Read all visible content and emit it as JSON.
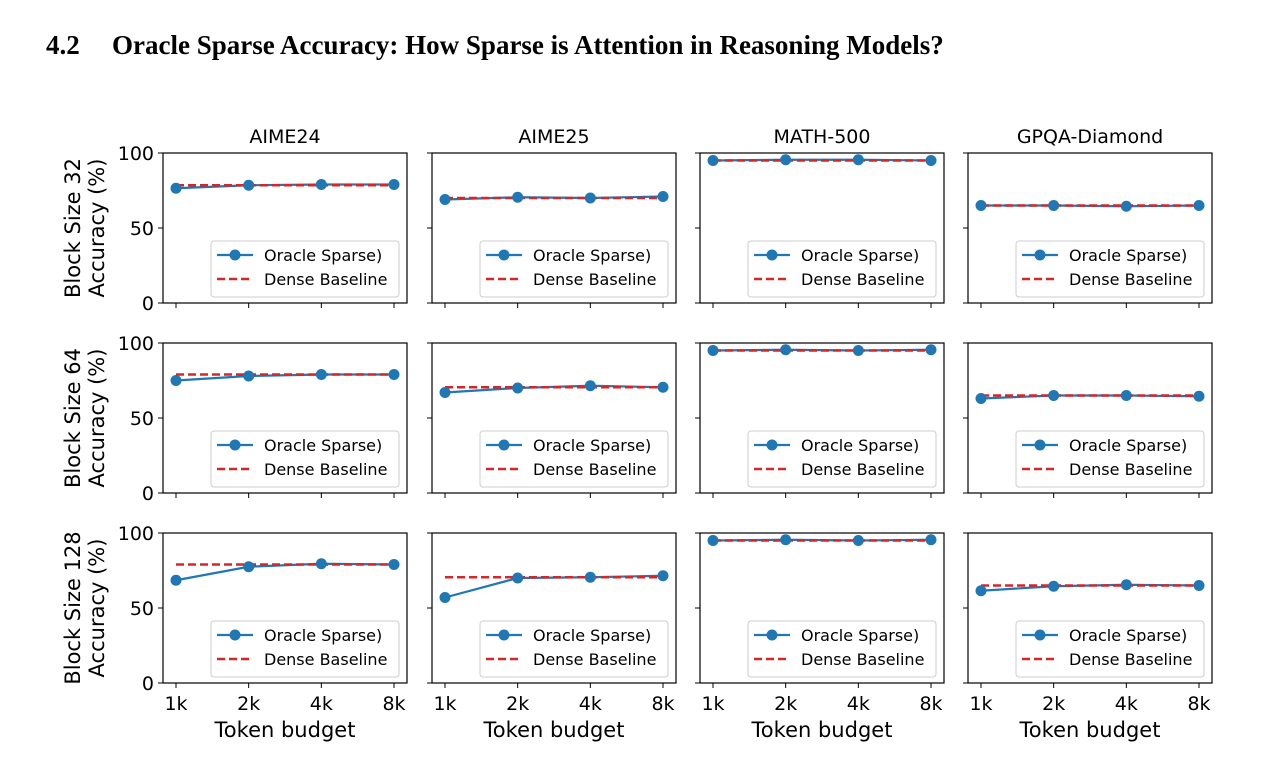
{
  "section": {
    "number": "4.2",
    "title": "Oracle Sparse Accuracy: How Sparse is Attention in Reasoning Models?"
  },
  "colors": {
    "oracle": "#1f77b4",
    "dense": "#d62728"
  },
  "figure": {
    "columns": [
      "AIME24",
      "AIME25",
      "MATH-500",
      "GPQA-Diamond"
    ],
    "rows": [
      {
        "line1": "Block Size 32",
        "line2": "Accuracy (%)"
      },
      {
        "line1": "Block Size 64",
        "line2": "Accuracy (%)"
      },
      {
        "line1": "Block Size 128",
        "line2": "Accuracy (%)"
      }
    ],
    "xlabel": "Token budget",
    "xticks": [
      "1k",
      "2k",
      "4k",
      "8k"
    ],
    "yticks": [
      "0",
      "50",
      "100"
    ],
    "legend": {
      "oracle": "Oracle Sparse)",
      "dense": "Dense Baseline"
    }
  },
  "chart_data": [
    {
      "type": "line",
      "row": "Block Size 32",
      "column": "AIME24",
      "x": [
        "1k",
        "2k",
        "4k",
        "8k"
      ],
      "ylim": [
        0,
        100
      ],
      "legend": "lower-right",
      "series": [
        {
          "name": "Oracle Sparse)",
          "values": [
            76.5,
            78.5,
            79,
            79
          ]
        },
        {
          "name": "Dense Baseline",
          "values": [
            78.5,
            78.5,
            78.5,
            78.5
          ]
        }
      ]
    },
    {
      "type": "line",
      "row": "Block Size 32",
      "column": "AIME25",
      "x": [
        "1k",
        "2k",
        "4k",
        "8k"
      ],
      "ylim": [
        0,
        100
      ],
      "legend": "lower-right",
      "series": [
        {
          "name": "Oracle Sparse)",
          "values": [
            69,
            70.5,
            70,
            71
          ]
        },
        {
          "name": "Dense Baseline",
          "values": [
            70,
            70,
            70,
            70
          ]
        }
      ]
    },
    {
      "type": "line",
      "row": "Block Size 32",
      "column": "MATH-500",
      "x": [
        "1k",
        "2k",
        "4k",
        "8k"
      ],
      "ylim": [
        0,
        100
      ],
      "legend": "lower-right",
      "series": [
        {
          "name": "Oracle Sparse)",
          "values": [
            95,
            95.5,
            95.5,
            95
          ]
        },
        {
          "name": "Dense Baseline",
          "values": [
            95,
            95,
            95,
            95
          ]
        }
      ]
    },
    {
      "type": "line",
      "row": "Block Size 32",
      "column": "GPQA-Diamond",
      "x": [
        "1k",
        "2k",
        "4k",
        "8k"
      ],
      "ylim": [
        0,
        100
      ],
      "legend": "lower-right",
      "series": [
        {
          "name": "Oracle Sparse)",
          "values": [
            65,
            65,
            64.5,
            65
          ]
        },
        {
          "name": "Dense Baseline",
          "values": [
            65,
            65,
            65,
            65
          ]
        }
      ]
    },
    {
      "type": "line",
      "row": "Block Size 64",
      "column": "AIME24",
      "x": [
        "1k",
        "2k",
        "4k",
        "8k"
      ],
      "ylim": [
        0,
        100
      ],
      "legend": "lower-right",
      "series": [
        {
          "name": "Oracle Sparse)",
          "values": [
            75,
            78,
            79,
            79
          ]
        },
        {
          "name": "Dense Baseline",
          "values": [
            79,
            79,
            79,
            79
          ]
        }
      ]
    },
    {
      "type": "line",
      "row": "Block Size 64",
      "column": "AIME25",
      "x": [
        "1k",
        "2k",
        "4k",
        "8k"
      ],
      "ylim": [
        0,
        100
      ],
      "legend": "lower-right",
      "series": [
        {
          "name": "Oracle Sparse)",
          "values": [
            67,
            70,
            71.5,
            70.5
          ]
        },
        {
          "name": "Dense Baseline",
          "values": [
            70.5,
            70.5,
            70.5,
            70.5
          ]
        }
      ]
    },
    {
      "type": "line",
      "row": "Block Size 64",
      "column": "MATH-500",
      "x": [
        "1k",
        "2k",
        "4k",
        "8k"
      ],
      "ylim": [
        0,
        100
      ],
      "legend": "lower-right",
      "series": [
        {
          "name": "Oracle Sparse)",
          "values": [
            95,
            95.5,
            95,
            95.5
          ]
        },
        {
          "name": "Dense Baseline",
          "values": [
            95,
            95,
            95,
            95
          ]
        }
      ]
    },
    {
      "type": "line",
      "row": "Block Size 64",
      "column": "GPQA-Diamond",
      "x": [
        "1k",
        "2k",
        "4k",
        "8k"
      ],
      "ylim": [
        0,
        100
      ],
      "legend": "lower-right",
      "series": [
        {
          "name": "Oracle Sparse)",
          "values": [
            63,
            65,
            65,
            64.5
          ]
        },
        {
          "name": "Dense Baseline",
          "values": [
            65,
            65,
            65,
            65
          ]
        }
      ]
    },
    {
      "type": "line",
      "row": "Block Size 128",
      "column": "AIME24",
      "x": [
        "1k",
        "2k",
        "4k",
        "8k"
      ],
      "ylim": [
        0,
        100
      ],
      "legend": "lower-right",
      "series": [
        {
          "name": "Oracle Sparse)",
          "values": [
            68.5,
            77.5,
            79.5,
            79
          ]
        },
        {
          "name": "Dense Baseline",
          "values": [
            79,
            79,
            79,
            79
          ]
        }
      ]
    },
    {
      "type": "line",
      "row": "Block Size 128",
      "column": "AIME25",
      "x": [
        "1k",
        "2k",
        "4k",
        "8k"
      ],
      "ylim": [
        0,
        100
      ],
      "legend": "lower-right",
      "series": [
        {
          "name": "Oracle Sparse)",
          "values": [
            57,
            70,
            70.5,
            71.5
          ]
        },
        {
          "name": "Dense Baseline",
          "values": [
            70.5,
            70.5,
            70.5,
            70.5
          ]
        }
      ]
    },
    {
      "type": "line",
      "row": "Block Size 128",
      "column": "MATH-500",
      "x": [
        "1k",
        "2k",
        "4k",
        "8k"
      ],
      "ylim": [
        0,
        100
      ],
      "legend": "lower-right",
      "series": [
        {
          "name": "Oracle Sparse)",
          "values": [
            95,
            95.5,
            95,
            95.5
          ]
        },
        {
          "name": "Dense Baseline",
          "values": [
            95,
            95,
            95,
            95
          ]
        }
      ]
    },
    {
      "type": "line",
      "row": "Block Size 128",
      "column": "GPQA-Diamond",
      "x": [
        "1k",
        "2k",
        "4k",
        "8k"
      ],
      "ylim": [
        0,
        100
      ],
      "legend": "lower-right",
      "series": [
        {
          "name": "Oracle Sparse)",
          "values": [
            61.5,
            64.5,
            65.5,
            65
          ]
        },
        {
          "name": "Dense Baseline",
          "values": [
            65,
            65,
            65,
            65
          ]
        }
      ]
    }
  ]
}
